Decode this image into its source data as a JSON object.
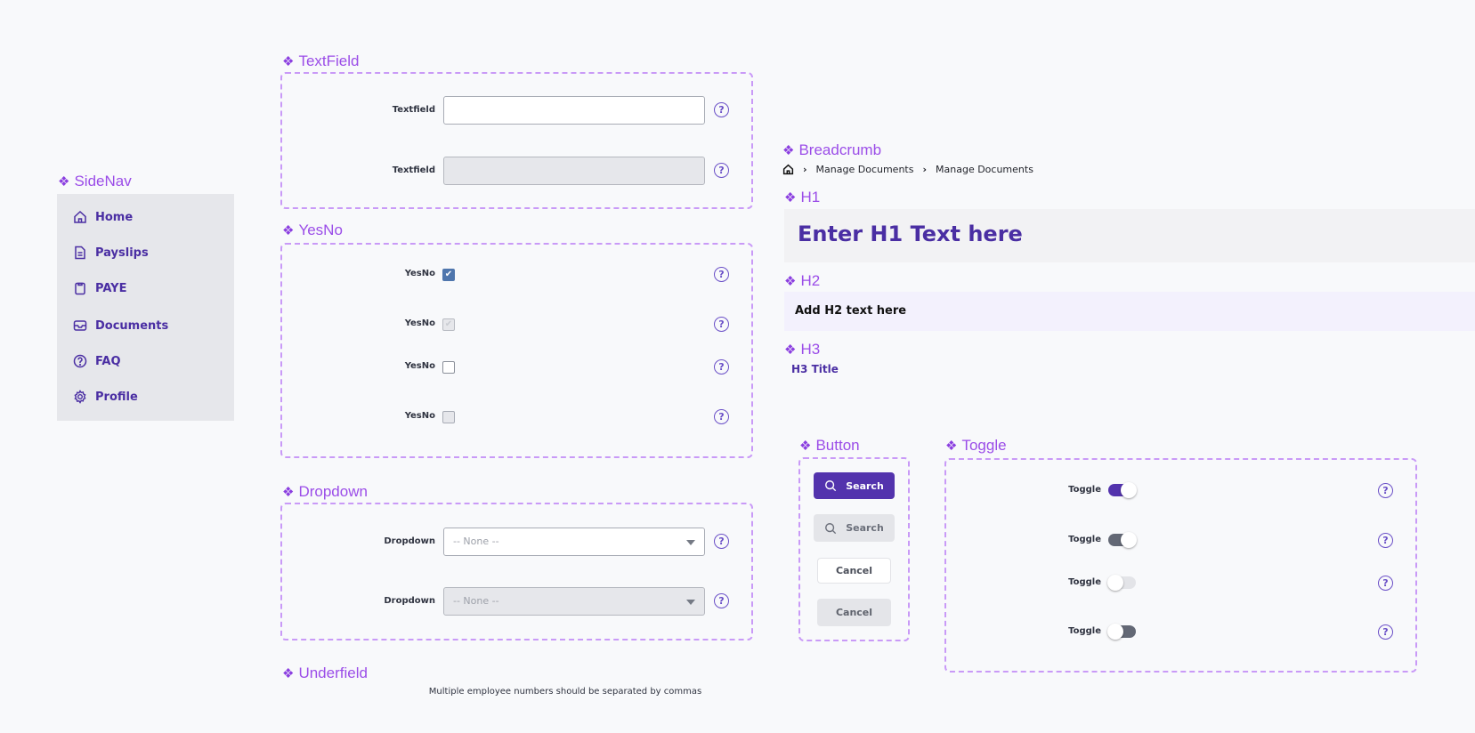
{
  "colors": {
    "accent": "#5333ad",
    "section_title": "#9b4de8",
    "dashed_border": "#c99af7",
    "nav_text": "#4a2ea3"
  },
  "sections": {
    "sidenav": "SideNav",
    "textfield": "TextField",
    "yesno": "YesNo",
    "dropdown": "Dropdown",
    "underfield": "Underfield",
    "breadcrumb": "Breadcrumb",
    "h1": "H1",
    "h2": "H2",
    "h3": "H3",
    "button": "Button",
    "toggle": "Toggle"
  },
  "sidenav": {
    "items": [
      {
        "label": "Home",
        "icon": "home-icon"
      },
      {
        "label": "Payslips",
        "icon": "document-icon"
      },
      {
        "label": "PAYE",
        "icon": "clipboard-icon"
      },
      {
        "label": "Documents",
        "icon": "inbox-icon"
      },
      {
        "label": "FAQ",
        "icon": "question-circle-icon"
      },
      {
        "label": "Profile",
        "icon": "gear-icon"
      }
    ]
  },
  "textfield": {
    "rows": [
      {
        "label": "Textfield",
        "value": "",
        "disabled": false
      },
      {
        "label": "Textfield",
        "value": "",
        "disabled": true
      }
    ]
  },
  "yesno": {
    "rows": [
      {
        "label": "YesNo",
        "checked": true,
        "disabled": false
      },
      {
        "label": "YesNo",
        "checked": true,
        "disabled": true
      },
      {
        "label": "YesNo",
        "checked": false,
        "disabled": false
      },
      {
        "label": "YesNo",
        "checked": false,
        "disabled": true
      }
    ]
  },
  "dropdown": {
    "rows": [
      {
        "label": "Dropdown",
        "value": "-- None --",
        "disabled": false
      },
      {
        "label": "Dropdown",
        "value": "-- None --",
        "disabled": true
      }
    ]
  },
  "underfield": {
    "text": "Multiple employee numbers should be separated by commas"
  },
  "breadcrumb": {
    "items": [
      "Manage Documents",
      "Manage Documents"
    ]
  },
  "h1": {
    "text": "Enter H1 Text here"
  },
  "h2": {
    "text": "Add H2 text here"
  },
  "h3": {
    "text": "H3 Title"
  },
  "buttons": {
    "search": "Search",
    "search_disabled": "Search",
    "cancel": "Cancel",
    "cancel_disabled": "Cancel"
  },
  "toggles": {
    "rows": [
      {
        "label": "Toggle",
        "on": true,
        "disabled": false
      },
      {
        "label": "Toggle",
        "on": true,
        "disabled": true
      },
      {
        "label": "Toggle",
        "on": false,
        "disabled": false
      },
      {
        "label": "Toggle",
        "on": false,
        "disabled": true
      }
    ]
  },
  "help_glyph": "?"
}
